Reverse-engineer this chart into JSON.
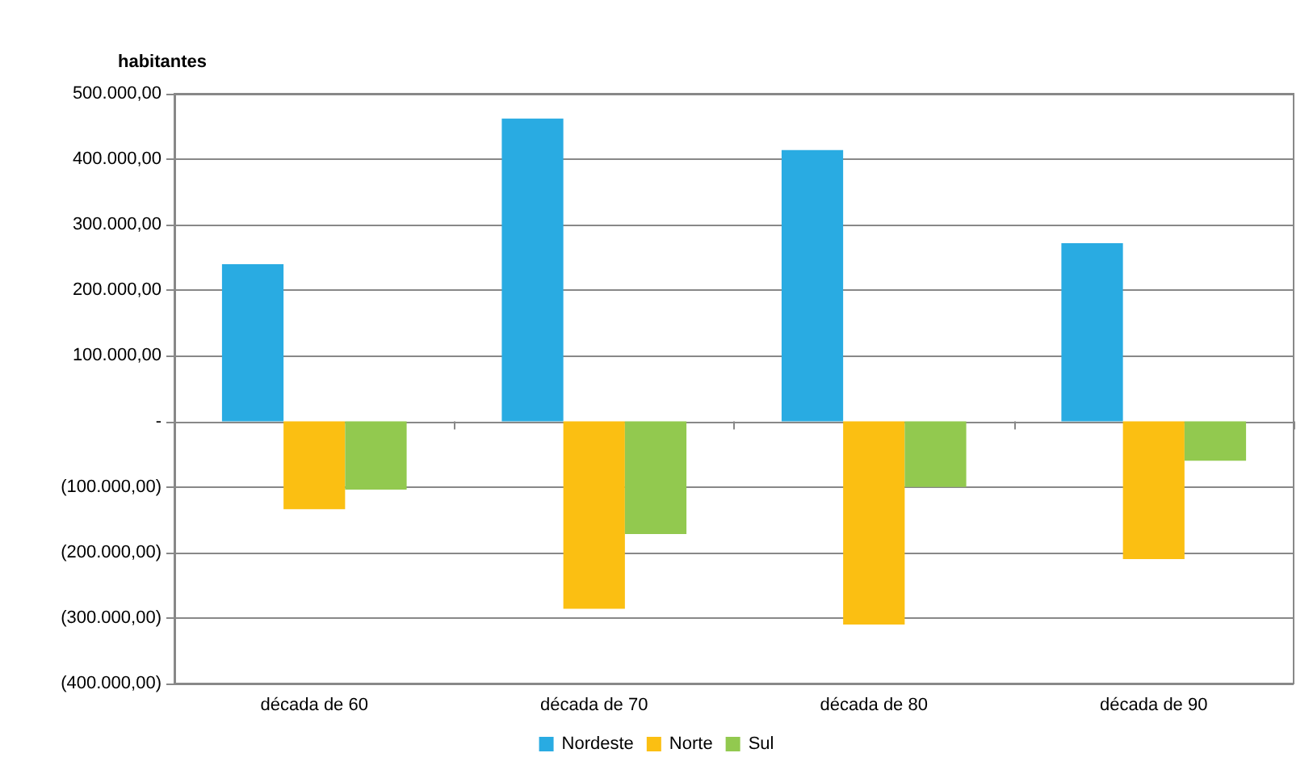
{
  "chart_data": {
    "type": "bar",
    "ylabel": "habitantes",
    "categories": [
      "década de 60",
      "década de 70",
      "década de 80",
      "década de 90"
    ],
    "series": [
      {
        "name": "Nordeste",
        "color": "#29abe2",
        "values": [
          240000,
          462000,
          414000,
          272000
        ]
      },
      {
        "name": "Norte",
        "color": "#fbbf12",
        "values": [
          -134000,
          -286000,
          -310000,
          -210000
        ]
      },
      {
        "name": "Sul",
        "color": "#92c94f",
        "values": [
          -104000,
          -172000,
          -100000,
          -60000
        ]
      }
    ],
    "ylim": [
      -400000,
      500000
    ],
    "yticks": [
      {
        "value": -400000,
        "label": "(400.000,00)"
      },
      {
        "value": -300000,
        "label": "(300.000,00)"
      },
      {
        "value": -200000,
        "label": "(200.000,00)"
      },
      {
        "value": -100000,
        "label": "(100.000,00)"
      },
      {
        "value": 0,
        "label": "-"
      },
      {
        "value": 100000,
        "label": "100.000,00"
      },
      {
        "value": 200000,
        "label": "200.000,00"
      },
      {
        "value": 300000,
        "label": "300.000,00"
      },
      {
        "value": 400000,
        "label": "400.000,00"
      },
      {
        "value": 500000,
        "label": "500.000,00"
      }
    ],
    "grid": "y",
    "legend": "bottom"
  }
}
